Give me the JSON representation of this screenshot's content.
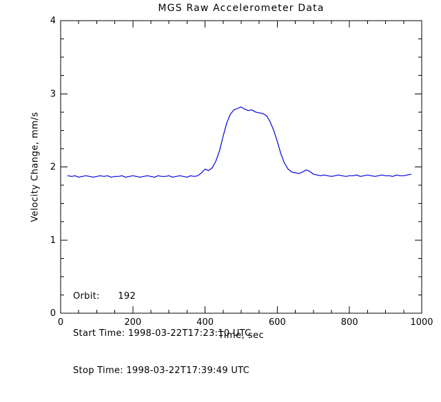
{
  "page": {
    "background": "#ffffff"
  },
  "chart_data": {
    "type": "line",
    "title": "MGS Raw Accelerometer Data",
    "xlabel": "Time, sec",
    "ylabel": "Velocity Change, mm/s",
    "xlim": [
      0,
      1000
    ],
    "ylim": [
      0,
      4
    ],
    "xticks": [
      0,
      200,
      400,
      600,
      800,
      1000
    ],
    "yticks": [
      0,
      1,
      2,
      3,
      4
    ],
    "x_minor_step": 50,
    "y_minor_step": 0.25,
    "grid": false,
    "legend": "none",
    "line_color": "#0000dd",
    "axis_color": "#000000",
    "series": [
      {
        "name": "velocity_change_mm_s",
        "x_start": 20,
        "x_step": 10,
        "values": [
          1.88,
          1.87,
          1.88,
          1.86,
          1.87,
          1.88,
          1.87,
          1.86,
          1.87,
          1.88,
          1.87,
          1.88,
          1.86,
          1.87,
          1.87,
          1.88,
          1.86,
          1.87,
          1.88,
          1.87,
          1.86,
          1.87,
          1.88,
          1.87,
          1.86,
          1.88,
          1.87,
          1.87,
          1.88,
          1.86,
          1.87,
          1.88,
          1.87,
          1.86,
          1.88,
          1.87,
          1.88,
          1.92,
          1.97,
          1.95,
          1.99,
          2.08,
          2.22,
          2.42,
          2.6,
          2.72,
          2.78,
          2.8,
          2.82,
          2.79,
          2.77,
          2.78,
          2.75,
          2.74,
          2.73,
          2.7,
          2.62,
          2.5,
          2.35,
          2.18,
          2.05,
          1.97,
          1.93,
          1.92,
          1.91,
          1.93,
          1.96,
          1.94,
          1.9,
          1.89,
          1.88,
          1.89,
          1.88,
          1.87,
          1.88,
          1.89,
          1.88,
          1.87,
          1.88,
          1.88,
          1.89,
          1.87,
          1.88,
          1.89,
          1.88,
          1.87,
          1.88,
          1.89,
          1.88,
          1.88,
          1.87,
          1.89,
          1.88,
          1.88,
          1.89,
          1.9
        ]
      }
    ],
    "annotations": [
      "Orbit:      192",
      "Start Time: 1998-03-22T17:23:10 UTC",
      "Stop Time: 1998-03-22T17:39:49 UTC"
    ]
  }
}
